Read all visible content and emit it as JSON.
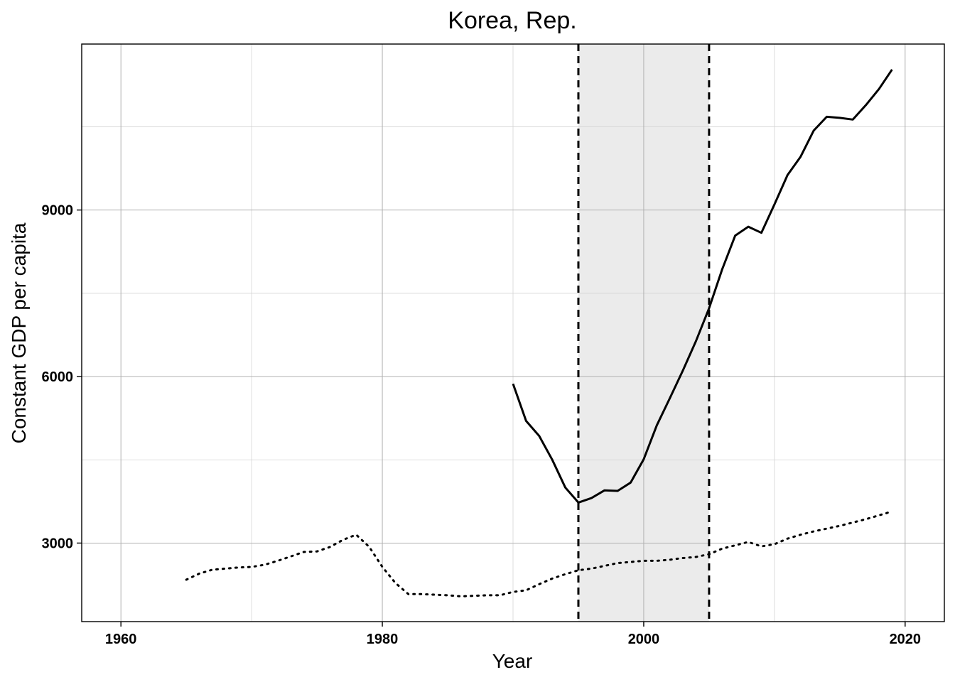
{
  "chart_data": {
    "type": "line",
    "title": "Korea, Rep.",
    "xlabel": "Year",
    "ylabel": "Constant GDP per capita",
    "xlim": [
      1957,
      2023
    ],
    "ylim": [
      1585,
      11990
    ],
    "x_ticks": [
      1960,
      1980,
      2000,
      2020
    ],
    "y_ticks": [
      3000,
      6000,
      9000
    ],
    "y_minor_gridlines": [
      4500,
      7500,
      10500
    ],
    "grid": true,
    "legend": "none",
    "shaded_region": {
      "x_start": 1995,
      "x_end": 2005,
      "color": "#ebebeb"
    },
    "vlines": [
      {
        "x": 1995,
        "style": "dashed"
      },
      {
        "x": 2005,
        "style": "dashed"
      }
    ],
    "series": [
      {
        "style": "solid",
        "x": [
          1990,
          1991,
          1992,
          1993,
          1994,
          1995,
          1996,
          1997,
          1998,
          1999,
          2000,
          2001,
          2002,
          2003,
          2004,
          2005,
          2006,
          2007,
          2008,
          2009,
          2010,
          2011,
          2012,
          2013,
          2014,
          2015,
          2016,
          2017,
          2018,
          2019
        ],
        "y": [
          5870,
          5200,
          4930,
          4500,
          4000,
          3730,
          3810,
          3950,
          3940,
          4090,
          4510,
          5120,
          5610,
          6110,
          6640,
          7230,
          7930,
          8540,
          8700,
          8590,
          9100,
          9630,
          9960,
          10430,
          10680,
          10660,
          10630,
          10890,
          11180,
          11530
        ]
      },
      {
        "style": "dotted",
        "x": [
          1965,
          1966,
          1967,
          1968,
          1969,
          1970,
          1971,
          1972,
          1973,
          1974,
          1975,
          1976,
          1977,
          1978,
          1979,
          1980,
          1981,
          1982,
          1983,
          1984,
          1985,
          1986,
          1987,
          1988,
          1989,
          1990,
          1991,
          1992,
          1993,
          1994,
          1995,
          1996,
          1997,
          1998,
          1999,
          2000,
          2001,
          2002,
          2003,
          2004,
          2005,
          2006,
          2007,
          2008,
          2009,
          2010,
          2011,
          2012,
          2013,
          2014,
          2015,
          2016,
          2017,
          2018,
          2019
        ],
        "y": [
          2340,
          2450,
          2520,
          2540,
          2560,
          2570,
          2610,
          2680,
          2760,
          2840,
          2850,
          2930,
          3060,
          3150,
          2930,
          2570,
          2280,
          2080,
          2080,
          2070,
          2060,
          2040,
          2050,
          2060,
          2060,
          2120,
          2150,
          2260,
          2360,
          2440,
          2510,
          2540,
          2590,
          2640,
          2660,
          2680,
          2680,
          2700,
          2730,
          2750,
          2800,
          2900,
          2960,
          3020,
          2940,
          2980,
          3080,
          3150,
          3210,
          3260,
          3310,
          3370,
          3430,
          3500,
          3570
        ]
      }
    ]
  }
}
